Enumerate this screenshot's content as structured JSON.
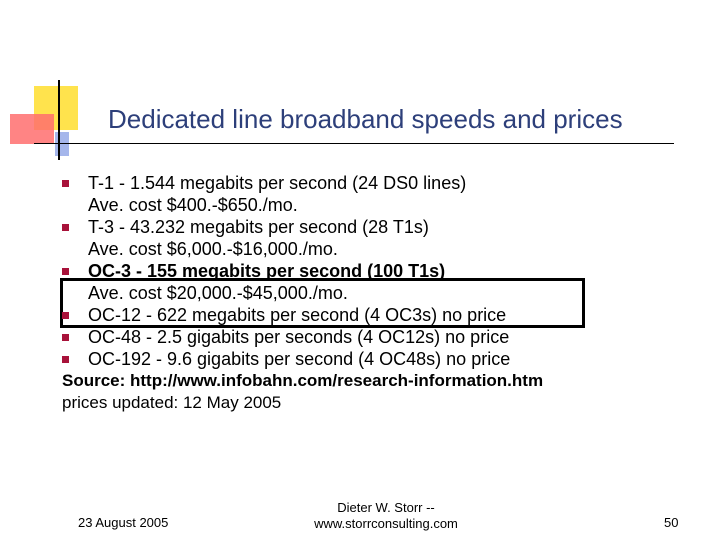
{
  "title": "Dedicated line broadband speeds and prices",
  "bullets": [
    {
      "main": "T-1 - 1.544 megabits per second (24 DS0 lines)",
      "sub": "Ave. cost $400.-$650./mo.",
      "bold": false
    },
    {
      "main": "T-3 - 43.232 megabits per second (28 T1s)",
      "sub": "Ave. cost $6,000.-$16,000./mo.",
      "bold": false
    },
    {
      "main": "OC-3 - 155 megabits per second (100 T1s)",
      "sub": "Ave. cost $20,000.-$45,000./mo.",
      "bold": true
    },
    {
      "main": "OC-12 - 622 megabits per second (4 OC3s) no price",
      "sub": "",
      "bold": false
    },
    {
      "main": "OC-48 - 2.5 gigabits per seconds (4 OC12s) no price",
      "sub": "",
      "bold": false
    },
    {
      "main": "OC-192 - 9.6 gigabits per second (4 OC48s) no price",
      "sub": "",
      "bold": false
    }
  ],
  "source": "Source: http://www.infobahn.com/research-information.htm",
  "updated": "prices updated: 12 May 2005",
  "footer": {
    "date": "23 August 2005",
    "author_line1": "Dieter W. Storr --",
    "author_line2": "www.storrconsulting.com",
    "page": "50"
  },
  "colors": {
    "title": "#2d3f7a",
    "bullet": "#a8123a",
    "deco_yellow": "#ffe34d",
    "deco_red": "#ff6f6f",
    "deco_blue": "#8fa4e6"
  }
}
